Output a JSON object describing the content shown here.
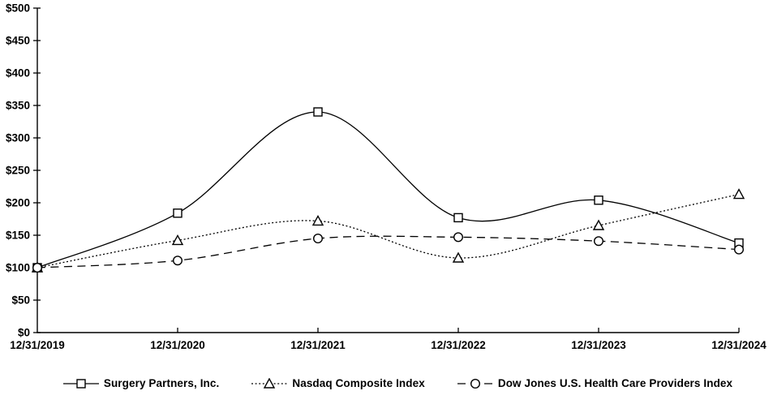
{
  "chart_data": {
    "type": "line",
    "smooth": true,
    "title": "",
    "xlabel": "",
    "ylabel": "",
    "y_tick_prefix": "$",
    "ylim": [
      0,
      500
    ],
    "y_step": 50,
    "grid": false,
    "legend_position": "bottom",
    "line_color": "#000000",
    "background_color": "#ffffff",
    "categories": [
      "12/31/2019",
      "12/31/2020",
      "12/31/2021",
      "12/31/2022",
      "12/31/2023",
      "12/31/2024"
    ],
    "series": [
      {
        "name": "Surgery Partners, Inc.",
        "marker": "square",
        "line": "solid",
        "values": [
          100,
          184,
          340,
          177,
          204,
          138
        ]
      },
      {
        "name": "Nasdaq Composite Index",
        "marker": "triangle",
        "line": "dotted",
        "values": [
          100,
          142,
          172,
          115,
          165,
          213
        ]
      },
      {
        "name": "Dow Jones U.S. Health Care Providers Index",
        "marker": "circle",
        "line": "dashed",
        "values": [
          100,
          111,
          145,
          147,
          141,
          128
        ]
      }
    ]
  }
}
